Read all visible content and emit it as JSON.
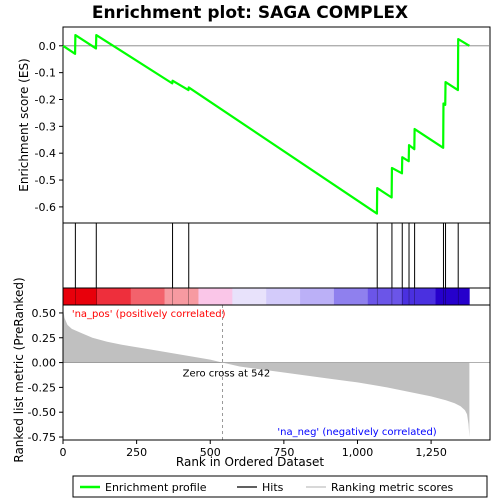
{
  "chart_data": {
    "type": "line",
    "title": "Enrichment plot: SAGA COMPLEX",
    "xlabel": "Rank in Ordered Dataset",
    "es_ylabel": "Enrichment score (ES)",
    "metric_ylabel": "Ranked list metric (PreRanked)",
    "xlim": [
      0,
      1450
    ],
    "x_ticks": [
      0,
      250,
      500,
      750,
      1000,
      1250
    ],
    "x_tick_labels": [
      "0",
      "250",
      "500",
      "750",
      "1,000",
      "1,250"
    ],
    "es_ylim": [
      -0.66,
      0.07
    ],
    "es_ticks": [
      0.0,
      -0.1,
      -0.2,
      -0.3,
      -0.4,
      -0.5,
      -0.6
    ],
    "es_tick_labels": [
      "0.0",
      "-0.1",
      "-0.2",
      "-0.3",
      "-0.4",
      "-0.5",
      "-0.6"
    ],
    "metric_ylim": [
      -0.78,
      0.58
    ],
    "metric_ticks": [
      0.5,
      0.25,
      0.0,
      -0.25,
      -0.5,
      -0.75
    ],
    "metric_tick_labels": [
      "0.50",
      "0.25",
      "0.00",
      "-0.25",
      "-0.50",
      "-0.75"
    ],
    "n_genes": 1380,
    "zero_cross_rank": 542,
    "zero_cross_label": "Zero cross at 542",
    "pos_label": "'na_pos' (positively correlated)",
    "neg_label": "'na_neg' (negatively correlated)",
    "hits": [
      0,
      42,
      113,
      372,
      427,
      1067,
      1117,
      1152,
      1175,
      1194,
      1292,
      1299,
      1342
    ],
    "es_profile": {
      "x": [
        0,
        41,
        42,
        112,
        113,
        371,
        372,
        426,
        427,
        1066,
        1067,
        1116,
        1117,
        1151,
        1152,
        1174,
        1175,
        1193,
        1194,
        1291,
        1292,
        1298,
        1299,
        1341,
        1342,
        1380
      ],
      "y": [
        0.0,
        -0.03,
        0.04,
        -0.01,
        0.04,
        -0.14,
        -0.13,
        -0.165,
        -0.155,
        -0.625,
        -0.53,
        -0.565,
        -0.455,
        -0.475,
        -0.415,
        -0.43,
        -0.37,
        -0.385,
        -0.31,
        -0.38,
        -0.215,
        -0.22,
        -0.135,
        -0.165,
        0.025,
        0.0
      ]
    },
    "metric_profile": {
      "x": [
        0,
        5,
        15,
        30,
        60,
        100,
        150,
        200,
        300,
        400,
        500,
        542,
        600,
        700,
        800,
        900,
        1000,
        1100,
        1200,
        1250,
        1300,
        1330,
        1350,
        1365,
        1372,
        1377,
        1380
      ],
      "y": [
        0.55,
        0.45,
        0.38,
        0.34,
        0.3,
        0.25,
        0.21,
        0.18,
        0.13,
        0.08,
        0.03,
        0.0,
        -0.04,
        -0.08,
        -0.12,
        -0.16,
        -0.2,
        -0.25,
        -0.31,
        -0.34,
        -0.38,
        -0.41,
        -0.44,
        -0.48,
        -0.52,
        -0.62,
        -0.75
      ]
    },
    "legend": {
      "position": "bottom",
      "entries": [
        "Enrichment profile",
        "Hits",
        "Ranking metric scores"
      ]
    },
    "colors": {
      "profile": "#00ff00",
      "hits": "#000000",
      "metric_fill": "#c0c0c0",
      "zero_line": "#808080",
      "pos_text": "#ff0000",
      "neg_text": "#0000ff",
      "heatmap": [
        "#e8000b",
        "#ee2f3c",
        "#f3626c",
        "#f79aa1",
        "#fac6e8",
        "#e8e2fb",
        "#d3cbfa",
        "#bbb0f7",
        "#8f80ee",
        "#6b55e8",
        "#4a30e0",
        "#2600cc"
      ]
    },
    "grid": false
  }
}
